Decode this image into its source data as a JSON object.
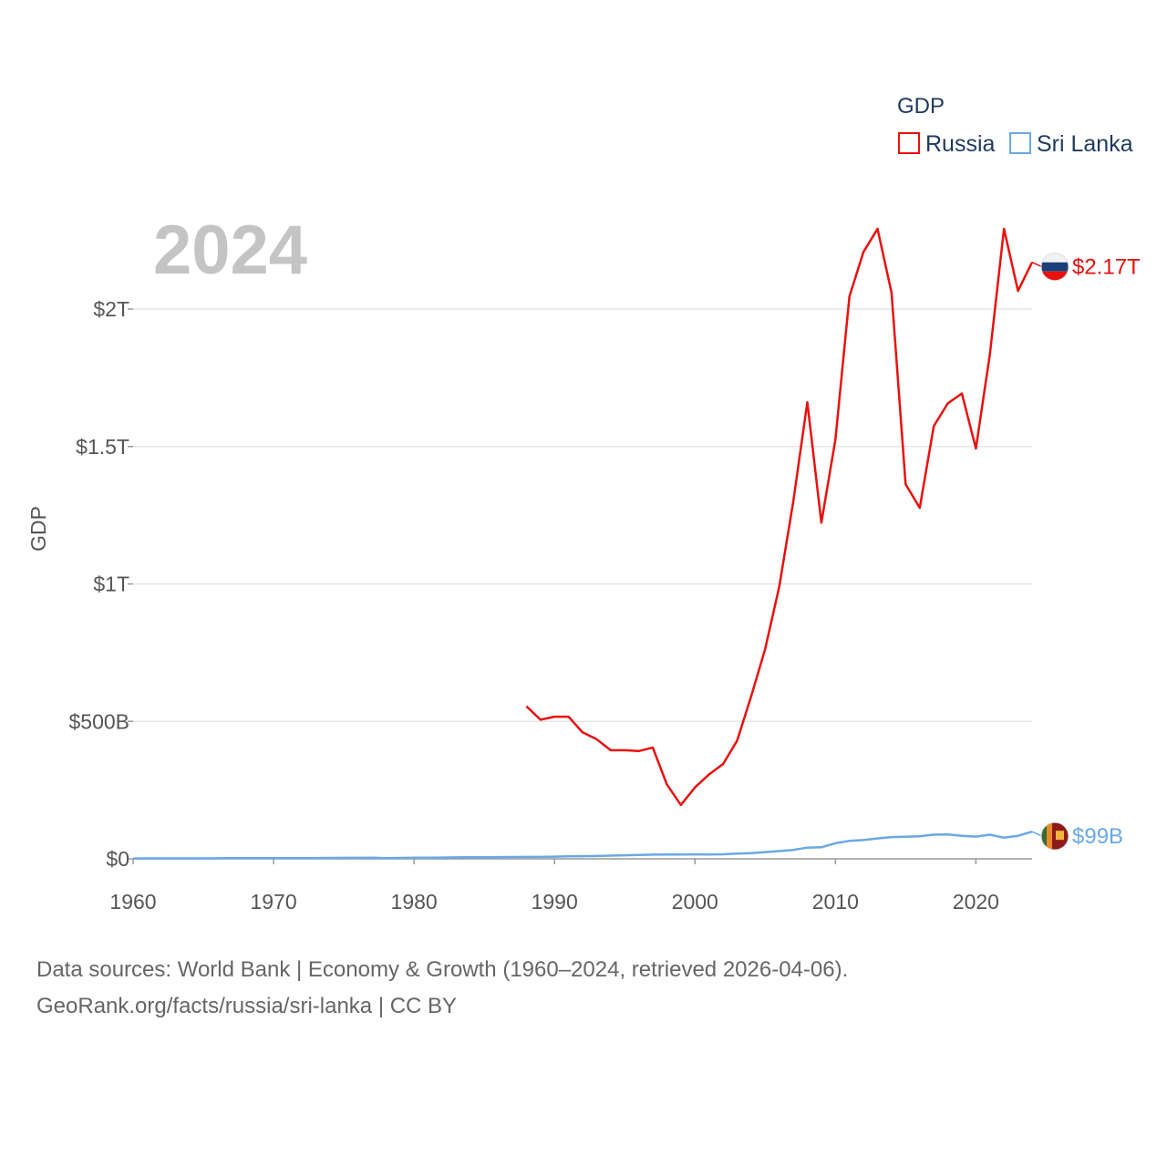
{
  "chart_data": {
    "type": "line",
    "legend_title": "GDP",
    "ylabel": "GDP",
    "year_label": "2024",
    "xlim": [
      1960,
      2024
    ],
    "ylim": [
      0,
      2400
    ],
    "x_ticks": [
      1960,
      1970,
      1980,
      1990,
      2000,
      2010,
      2020
    ],
    "y_ticks": [
      {
        "value": 0,
        "label": "$0"
      },
      {
        "value": 500,
        "label": "$500B"
      },
      {
        "value": 1000,
        "label": "$1T"
      },
      {
        "value": 1500,
        "label": "$1.5T"
      },
      {
        "value": 2000,
        "label": "$2T"
      }
    ],
    "units": "billions USD",
    "series": [
      {
        "name": "Russia",
        "color": "#e8110f",
        "end_label": "$2.17T",
        "flag": "russia-flag",
        "x": [
          1988,
          1989,
          1990,
          1991,
          1992,
          1993,
          1994,
          1995,
          1996,
          1997,
          1998,
          1999,
          2000,
          2001,
          2002,
          2003,
          2004,
          2005,
          2006,
          2007,
          2008,
          2009,
          2010,
          2011,
          2012,
          2013,
          2014,
          2015,
          2016,
          2017,
          2018,
          2019,
          2020,
          2021,
          2022,
          2023,
          2024
        ],
        "values": [
          555,
          506,
          517,
          517,
          460,
          435,
          395,
          395,
          392,
          405,
          271,
          196,
          260,
          307,
          345,
          430,
          591,
          764,
          990,
          1300,
          1661,
          1223,
          1525,
          2046,
          2208,
          2292,
          2059,
          1363,
          1277,
          1574,
          1657,
          1693,
          1493,
          1837,
          2292,
          2066,
          2170
        ]
      },
      {
        "name": "Sri Lanka",
        "color": "#6aa8e6",
        "end_label": "$99B",
        "flag": "sri-lanka-flag",
        "x": [
          1960,
          1961,
          1962,
          1963,
          1964,
          1965,
          1966,
          1967,
          1968,
          1969,
          1970,
          1971,
          1972,
          1973,
          1974,
          1975,
          1976,
          1977,
          1978,
          1979,
          1980,
          1981,
          1982,
          1983,
          1984,
          1985,
          1986,
          1987,
          1988,
          1989,
          1990,
          1991,
          1992,
          1993,
          1994,
          1995,
          1996,
          1997,
          1998,
          1999,
          2000,
          2001,
          2002,
          2003,
          2004,
          2005,
          2006,
          2007,
          2008,
          2009,
          2010,
          2011,
          2012,
          2013,
          2014,
          2015,
          2016,
          2017,
          2018,
          2019,
          2020,
          2021,
          2022,
          2023,
          2024
        ],
        "values": [
          1.4,
          1.5,
          1.5,
          1.6,
          1.7,
          1.8,
          1.9,
          2.2,
          2.3,
          2.4,
          2.3,
          2.4,
          2.6,
          2.9,
          3.4,
          3.7,
          3.6,
          4.1,
          2.8,
          3.4,
          4.0,
          4.4,
          4.8,
          5.2,
          6.0,
          6.0,
          6.4,
          6.6,
          6.9,
          7.0,
          8.0,
          9.0,
          9.7,
          10.3,
          11.7,
          13.0,
          13.9,
          15.1,
          15.8,
          15.7,
          16.3,
          15.7,
          16.5,
          18.9,
          20.7,
          24.4,
          28.3,
          32.4,
          40.7,
          42.1,
          56.7,
          65.3,
          68.4,
          74.3,
          79.4,
          80.6,
          82.4,
          88.0,
          89.0,
          84.0,
          81.0,
          88.0,
          77.0,
          84.0,
          99.0
        ]
      }
    ]
  },
  "footer": {
    "line1": "Data sources: World Bank | Economy & Growth (1960–2024, retrieved 2026-04-06).",
    "line2": "GeoRank.org/facts/russia/sri-lanka | CC BY"
  }
}
